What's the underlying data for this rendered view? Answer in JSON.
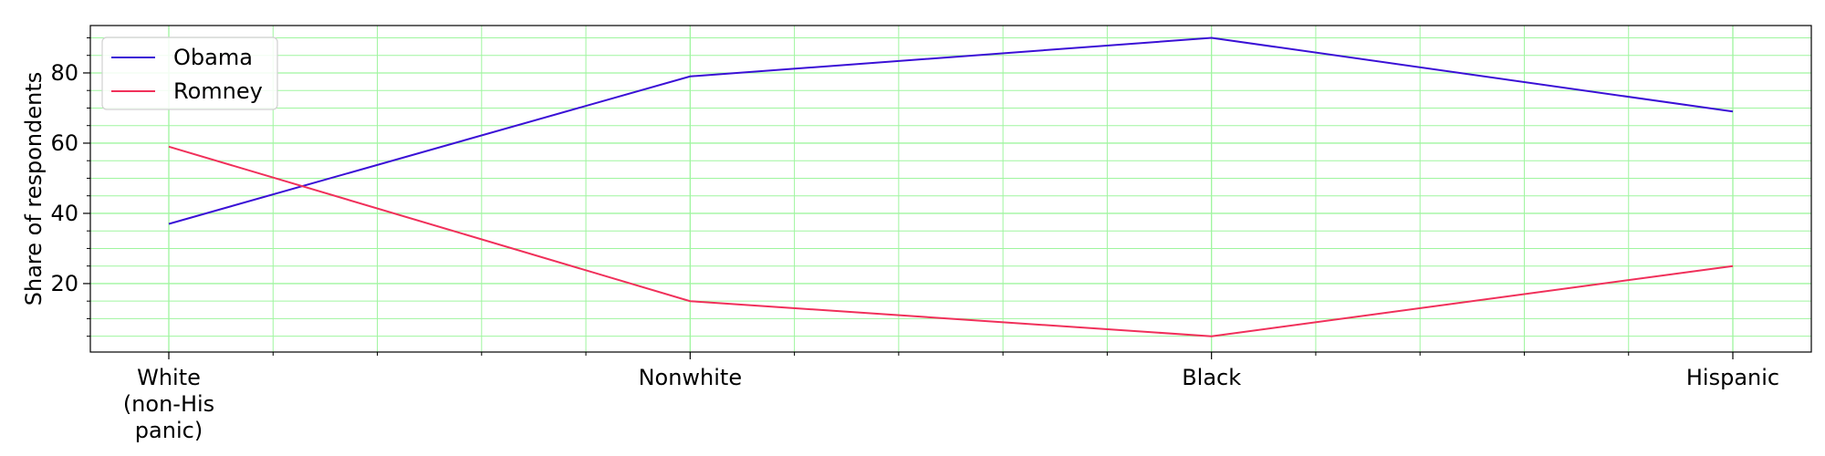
{
  "chart_data": {
    "type": "line",
    "title": "",
    "xlabel": "",
    "ylabel": "Share of respondents",
    "categories": [
      "White\n(non-His\npanic)",
      "Nonwhite",
      "Black",
      "Hispanic"
    ],
    "series": [
      {
        "name": "Obama",
        "color": "#3a10d6",
        "values": [
          37,
          79,
          90,
          69
        ]
      },
      {
        "name": "Romney",
        "color": "#f0305a",
        "values": [
          59,
          15,
          5,
          25
        ]
      }
    ],
    "ylim": [
      0.5,
      93.5
    ],
    "yticks": [
      20,
      40,
      60,
      80
    ],
    "grid": true,
    "grid_color": "#9ff59f",
    "legend_position": "top-left"
  }
}
